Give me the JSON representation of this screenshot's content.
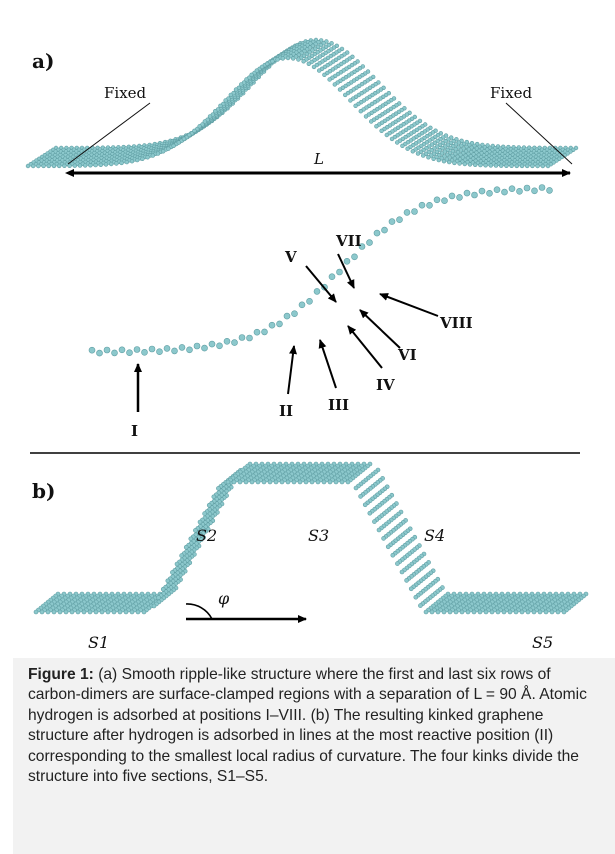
{
  "panels": {
    "a": {
      "label": "a)",
      "fixed_left": "Fixed",
      "fixed_right": "Fixed",
      "length_symbol": "L",
      "positions": [
        "I",
        "II",
        "III",
        "IV",
        "V",
        "VI",
        "VII",
        "VIII"
      ]
    },
    "b": {
      "label": "b)",
      "sections": [
        "S1",
        "S2",
        "S3",
        "S4",
        "S5"
      ],
      "angle_symbol": "φ"
    }
  },
  "caption": {
    "label": "Figure 1:",
    "text": " (a) Smooth ripple-like structure where the first and last six rows of carbon-dimers are surface-clamped regions with a separation of L = 90 Å. Atomic hydrogen is adsorbed at positions I–VIII. (b) The resulting kinked graphene structure after hydrogen is adsorbed in lines at the most reactive position (II) corresponding to the smallest local radius of curvature. The four kinks divide the structure into five sections, S1–S5."
  },
  "colors": {
    "atom": "#8cc8cc",
    "atom_edge": "#5f9ea3",
    "arrow": "#000000",
    "caption_bg": "#f2f2f2"
  }
}
